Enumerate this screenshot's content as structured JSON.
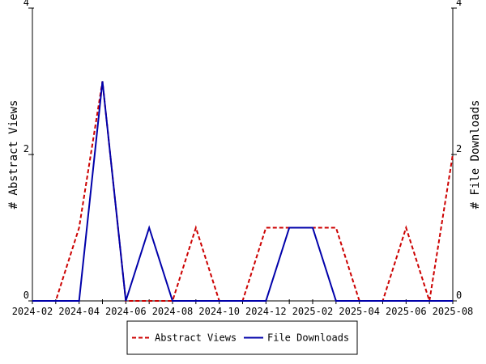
{
  "chart_data": {
    "type": "line",
    "x": [
      "2024-02",
      "2024-03",
      "2024-04",
      "2024-05",
      "2024-06",
      "2024-07",
      "2024-08",
      "2024-09",
      "2024-10",
      "2024-11",
      "2024-12",
      "2025-01",
      "2025-02",
      "2025-03",
      "2025-04",
      "2025-05",
      "2025-06",
      "2025-07",
      "2025-08"
    ],
    "x_tick_labels": [
      "2024-02",
      "2024-04",
      "2024-06",
      "2024-08",
      "2024-10",
      "2024-12",
      "2025-02",
      "2025-04",
      "2025-06",
      "2025-08"
    ],
    "series": [
      {
        "name": "Abstract Views",
        "color": "#cc0000",
        "style": "dashed",
        "axis": "left",
        "values": [
          0,
          0,
          1,
          3,
          0,
          0,
          0,
          1,
          0,
          0,
          1,
          1,
          1,
          1,
          0,
          0,
          1,
          0,
          2
        ]
      },
      {
        "name": "File Downloads",
        "color": "#0000aa",
        "style": "solid",
        "axis": "right",
        "values": [
          0,
          0,
          0,
          3,
          0,
          1,
          0,
          0,
          0,
          0,
          0,
          1,
          1,
          0,
          0,
          0,
          0,
          0,
          0
        ]
      }
    ],
    "ylabel_left": "# Abstract Views",
    "ylabel_right": "# File Downloads",
    "ylim": [
      0,
      4
    ],
    "y_ticks": [
      "0",
      "2",
      "4"
    ],
    "grid": false,
    "legend_position": "bottom"
  }
}
